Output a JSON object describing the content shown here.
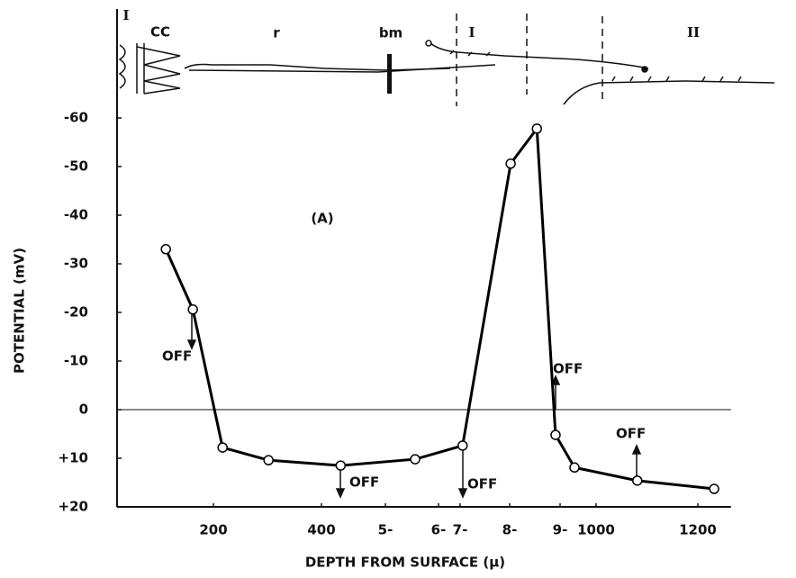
{
  "chart_data": {
    "type": "line",
    "y_label": "POTENTIAL (mV)",
    "x_label": "DEPTH FROM SURFACE (μ)",
    "x": [
      112,
      162,
      217,
      302,
      430,
      556,
      705,
      802,
      854,
      891,
      940,
      1081,
      1232
    ],
    "series": [
      {
        "color": "#000000",
        "values": [
          -33.0,
          -20.6,
          7.8,
          10.4,
          11.5,
          10.2,
          7.4,
          -50.6,
          -57.8,
          5.2,
          11.9,
          14.6,
          16.3
        ]
      }
    ],
    "ylim": [
      20,
      -60
    ],
    "yticks": [
      -60,
      -50,
      -40,
      -30,
      -20,
      -10,
      0,
      {
        "value": 10,
        "label": "+10"
      },
      {
        "value": 20,
        "label": "+20"
      }
    ],
    "xlim": [
      22,
      1265
    ],
    "xticks": [
      200,
      400,
      {
        "value": 500,
        "label": "5-"
      },
      {
        "value": 600,
        "label": "6-"
      },
      {
        "value": 700,
        "label": "7-"
      },
      {
        "value": 800,
        "label": "8-"
      },
      {
        "value": 900,
        "label": "9-"
      },
      1000,
      1200
    ],
    "annotations": [
      "(A)",
      "OFF",
      "OFF",
      "OFF",
      "OFF",
      "OFF"
    ],
    "diagram_labels": [
      "I",
      "CC",
      "r",
      "bm",
      "I",
      "II"
    ]
  }
}
